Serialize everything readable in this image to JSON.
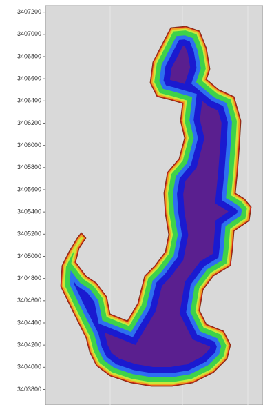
{
  "map": {
    "ylim": [
      3403660,
      3407260
    ],
    "yticks": [
      3407200,
      3407000,
      3406800,
      3406600,
      3406400,
      3406200,
      3406000,
      3405800,
      3405600,
      3405400,
      3405200,
      3405000,
      3404800,
      3404600,
      3404400,
      3404200,
      3404000,
      3403800
    ]
  }
}
